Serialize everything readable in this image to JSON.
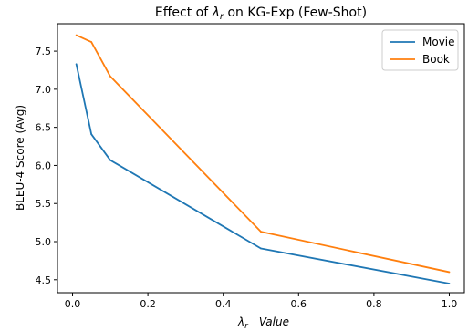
{
  "chart_data": {
    "type": "line",
    "title_prefix": "Effect of ",
    "title_symbol": "λ",
    "title_subscript": "r",
    "title_suffix": " on KG-Exp (Few-Shot)",
    "xlabel_symbol": "λ",
    "xlabel_subscript": "r",
    "xlabel_suffix": "Value",
    "ylabel": "BLEU-4 Score (Avg)",
    "x": [
      0.01,
      0.05,
      0.1,
      0.5,
      1.0
    ],
    "xlim": [
      -0.04,
      1.04
    ],
    "ylim": [
      4.33,
      7.86
    ],
    "xticks": [
      0.0,
      0.2,
      0.4,
      0.6,
      0.8,
      1.0
    ],
    "xtick_labels": [
      "0.0",
      "0.2",
      "0.4",
      "0.6",
      "0.8",
      "1.0"
    ],
    "yticks": [
      4.5,
      5.0,
      5.5,
      6.0,
      6.5,
      7.0,
      7.5
    ],
    "ytick_labels": [
      "4.5",
      "5.0",
      "5.5",
      "6.0",
      "6.5",
      "7.0",
      "7.5"
    ],
    "grid": false,
    "legend_position": "top-right",
    "series": [
      {
        "name": "Movie",
        "color": "#1f77b4",
        "values": [
          7.33,
          6.41,
          6.07,
          4.91,
          4.45
        ]
      },
      {
        "name": "Book",
        "color": "#ff7f0e",
        "values": [
          7.71,
          7.62,
          7.17,
          5.13,
          4.6
        ]
      }
    ]
  }
}
